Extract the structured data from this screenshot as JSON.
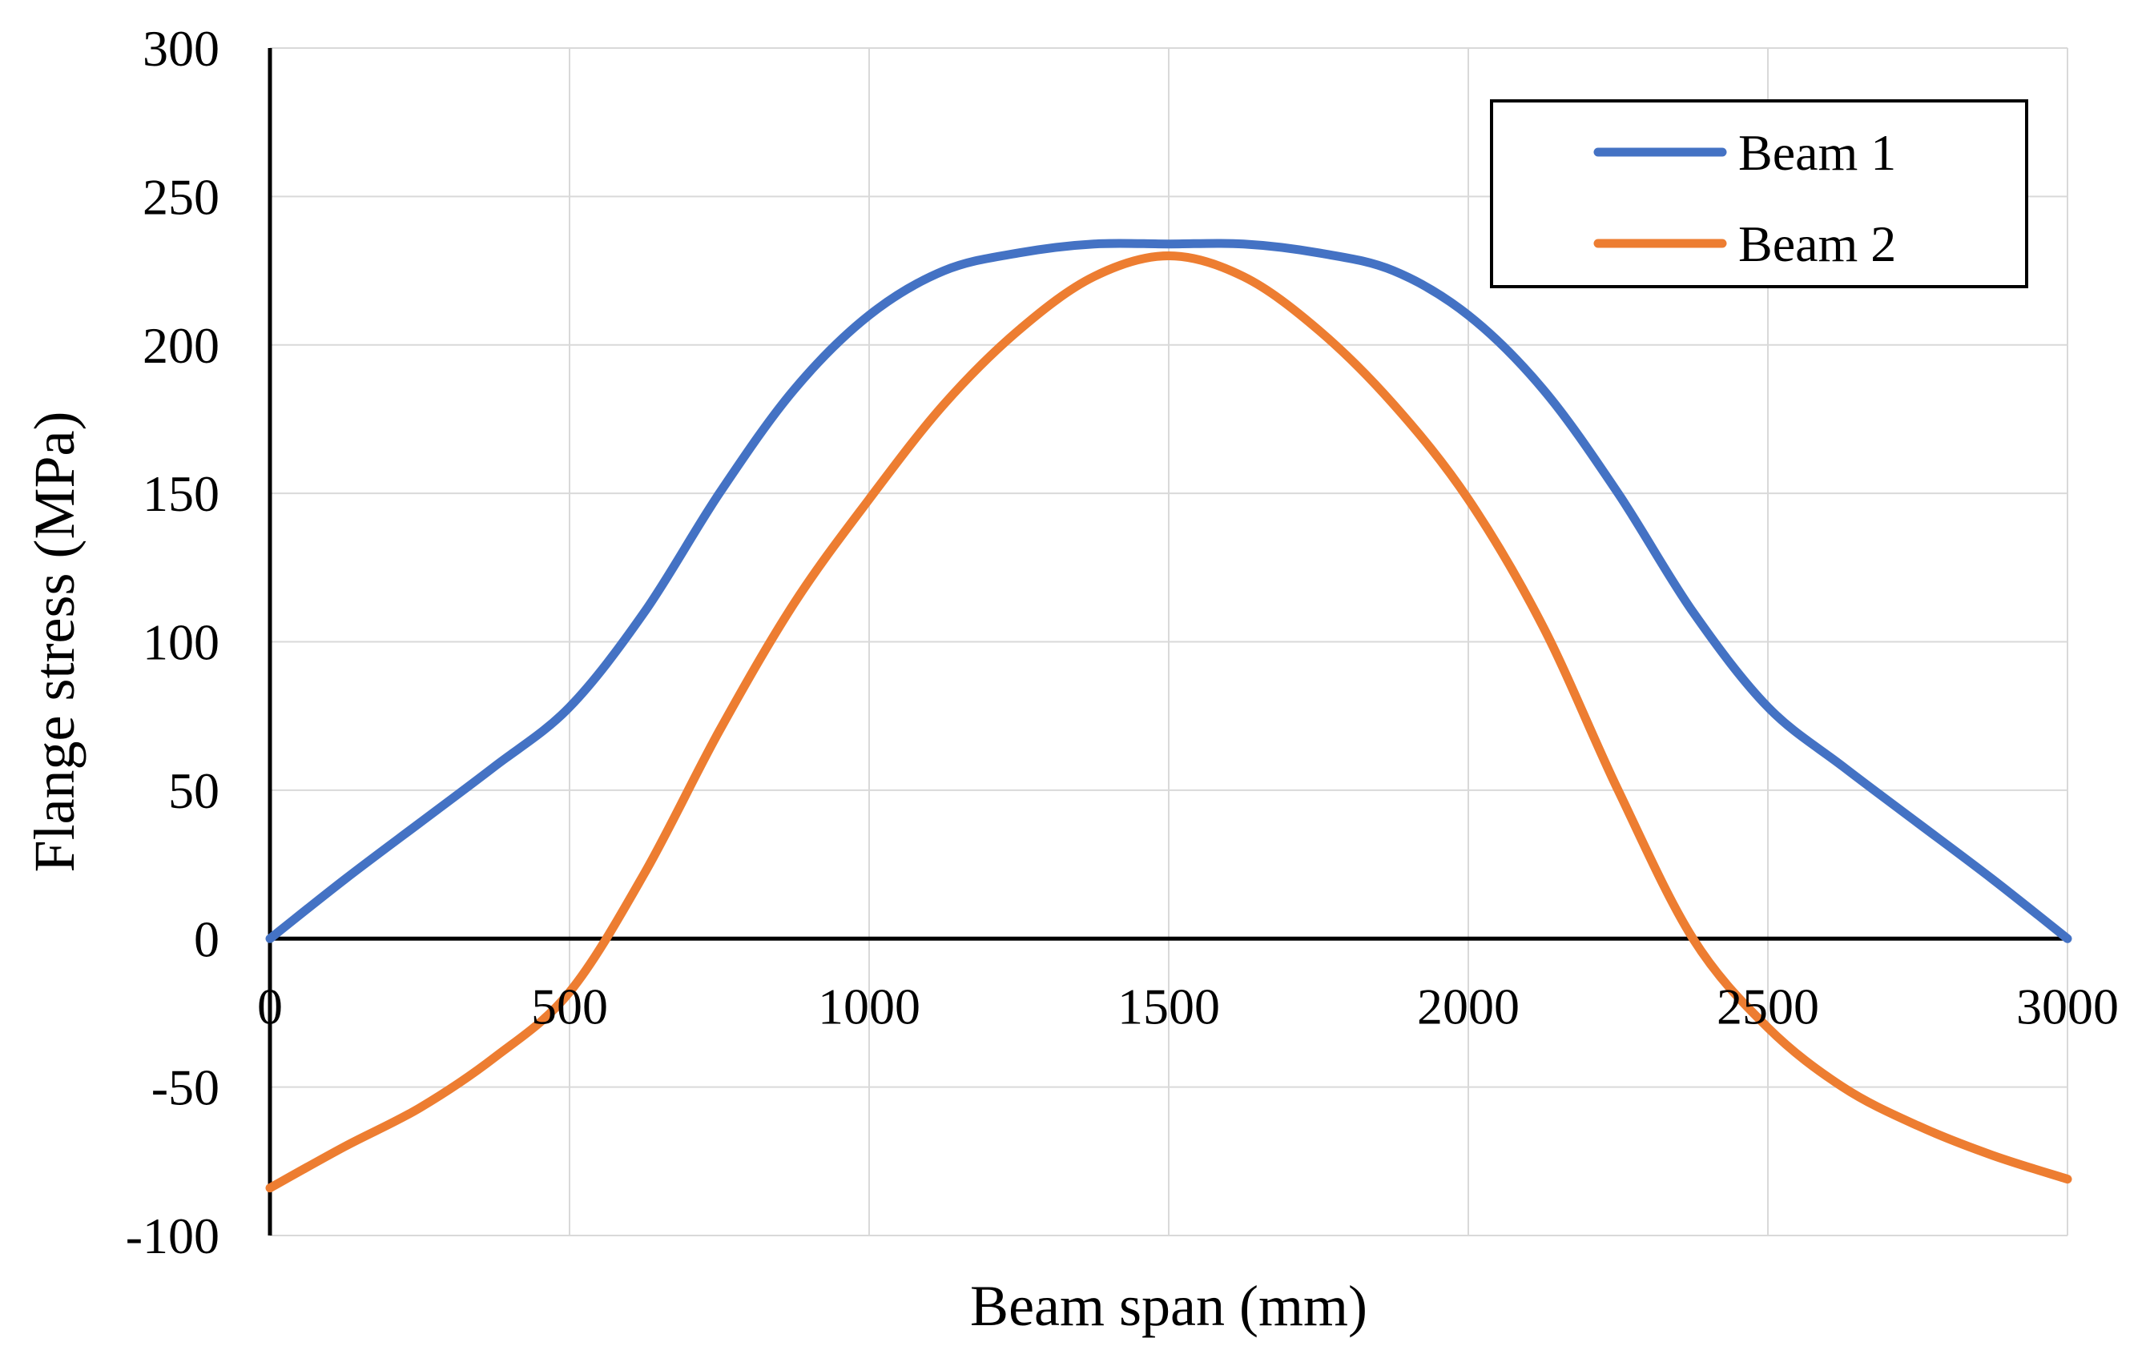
{
  "chart_data": {
    "type": "line",
    "title": "",
    "xlabel": "Beam span (mm)",
    "ylabel": "Flange stress (MPa)",
    "xlim": [
      0,
      3000
    ],
    "ylim": [
      -100,
      300
    ],
    "xticks": [
      0,
      500,
      1000,
      1500,
      2000,
      2500,
      3000
    ],
    "yticks": [
      -100,
      -50,
      0,
      50,
      100,
      150,
      200,
      250,
      300
    ],
    "xtick_labels": [
      "0",
      "500",
      "1000",
      "1500",
      "2000",
      "2500",
      "3000"
    ],
    "ytick_labels": [
      "-100",
      "-50",
      "0",
      "50",
      "100",
      "150",
      "200",
      "250",
      "300"
    ],
    "grid": true,
    "legend_position": "top-right",
    "series": [
      {
        "name": "Beam 1",
        "color": "#4472c4",
        "x": [
          0,
          125,
          250,
          375,
          500,
          625,
          750,
          875,
          1000,
          1125,
          1250,
          1375,
          1500,
          1625,
          1750,
          1875,
          2000,
          2125,
          2250,
          2375,
          2500,
          2625,
          2750,
          2875,
          3000
        ],
        "y": [
          0,
          20,
          39,
          58,
          78,
          110,
          150,
          185,
          210,
          225,
          231,
          234,
          234,
          234,
          231,
          225,
          210,
          185,
          150,
          110,
          78,
          58,
          39,
          20,
          0
        ]
      },
      {
        "name": "Beam 2",
        "color": "#ed7d31",
        "x": [
          0,
          125,
          250,
          375,
          500,
          625,
          750,
          875,
          1000,
          1125,
          1250,
          1375,
          1500,
          1625,
          1750,
          1875,
          2000,
          2125,
          2250,
          2375,
          2500,
          2625,
          2750,
          2875,
          3000
        ],
        "y": [
          -84,
          -70,
          -57,
          -40,
          -18,
          22,
          70,
          113,
          148,
          180,
          205,
          223,
          230,
          223,
          205,
          180,
          148,
          105,
          50,
          0,
          -30,
          -50,
          -63,
          -73,
          -81
        ]
      }
    ]
  }
}
